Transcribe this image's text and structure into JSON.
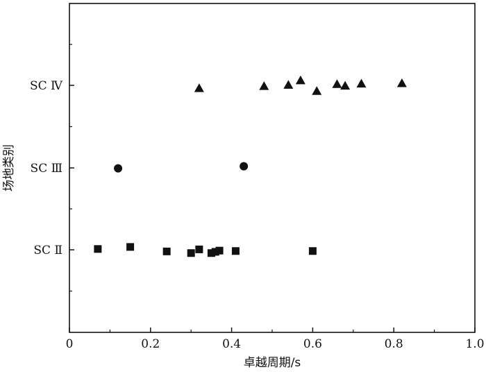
{
  "chart_data": {
    "type": "scatter",
    "title": "",
    "xlabel": "卓越周期/s",
    "ylabel": "场地类别",
    "xlim": [
      0,
      1.0
    ],
    "x_ticks": [
      "0",
      "0.2",
      "0.4",
      "0.6",
      "0.8",
      "1.0"
    ],
    "categories": [
      "SC Ⅱ",
      "SC Ⅲ",
      "SC Ⅳ"
    ],
    "grid": false,
    "legend": "none",
    "series": [
      {
        "category": "SC Ⅱ",
        "marker": "square",
        "color": "#111111",
        "points": [
          {
            "x": 0.07,
            "offset": 0.02
          },
          {
            "x": 0.15,
            "offset": 0.07
          },
          {
            "x": 0.24,
            "offset": -0.04
          },
          {
            "x": 0.3,
            "offset": -0.08
          },
          {
            "x": 0.32,
            "offset": 0.01
          },
          {
            "x": 0.35,
            "offset": -0.08
          },
          {
            "x": 0.36,
            "offset": -0.05
          },
          {
            "x": 0.37,
            "offset": -0.02
          },
          {
            "x": 0.41,
            "offset": -0.03
          },
          {
            "x": 0.6,
            "offset": -0.03
          }
        ]
      },
      {
        "category": "SC Ⅲ",
        "marker": "circle",
        "color": "#111111",
        "points": [
          {
            "x": 0.12,
            "offset": -0.01
          },
          {
            "x": 0.43,
            "offset": 0.04
          }
        ]
      },
      {
        "category": "SC Ⅳ",
        "marker": "triangle",
        "color": "#111111",
        "points": [
          {
            "x": 0.32,
            "offset": -0.07
          },
          {
            "x": 0.48,
            "offset": -0.02
          },
          {
            "x": 0.54,
            "offset": 0.01
          },
          {
            "x": 0.57,
            "offset": 0.12
          },
          {
            "x": 0.61,
            "offset": -0.14
          },
          {
            "x": 0.66,
            "offset": 0.03
          },
          {
            "x": 0.68,
            "offset": -0.01
          },
          {
            "x": 0.72,
            "offset": 0.04
          },
          {
            "x": 0.82,
            "offset": 0.05
          }
        ]
      }
    ]
  }
}
